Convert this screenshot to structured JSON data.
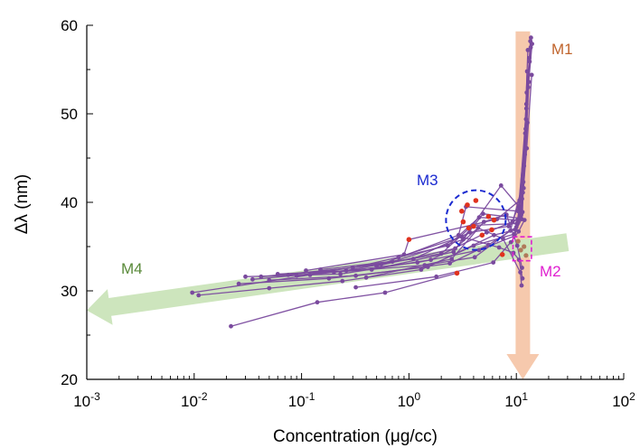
{
  "chart_data": {
    "type": "line",
    "xlabel": "Concentration (μg/cc)",
    "ylabel": "Δλ (nm)",
    "xscale": "log",
    "xlim": [
      0.001,
      100
    ],
    "ylim": [
      20,
      60
    ],
    "xticks": [
      {
        "value": 0.001,
        "base": "10",
        "exp": "-3"
      },
      {
        "value": 0.01,
        "base": "10",
        "exp": "-2"
      },
      {
        "value": 0.1,
        "base": "10",
        "exp": "-1"
      },
      {
        "value": 1,
        "base": "10",
        "exp": "0"
      },
      {
        "value": 10,
        "base": "10",
        "exp": "1"
      },
      {
        "value": 100,
        "base": "10",
        "exp": "2"
      }
    ],
    "yticks": [
      20,
      30,
      40,
      50,
      60
    ],
    "grid": false,
    "line_color": "#7a4a9e",
    "highlight_color": "#e0321e",
    "annotations": [
      {
        "id": "M1",
        "label": "M1",
        "color": "#c0642c"
      },
      {
        "id": "M2",
        "label": "M2",
        "color": "#e020d0"
      },
      {
        "id": "M3",
        "label": "M3",
        "color": "#1a2ad0"
      },
      {
        "id": "M4",
        "label": "M4",
        "color": "#5a8a3a"
      }
    ],
    "arrows": [
      {
        "id": "M1",
        "kind": "vertical-down",
        "x": 11.5,
        "y_from": 59,
        "y_to": 20,
        "color": "#f6c9ad"
      },
      {
        "id": "M4",
        "kind": "leftward",
        "x_from": 30,
        "x_to": 0.001,
        "y_from": 35.5,
        "y_to": 27.8,
        "color": "#cde5bd"
      }
    ],
    "regions": [
      {
        "id": "M3",
        "shape": "circle",
        "center": [
          4.2,
          38
        ],
        "color": "#1a2ad0"
      },
      {
        "id": "M2",
        "shape": "rect",
        "x": [
          9.3,
          13.8
        ],
        "y": [
          33.4,
          36.1
        ],
        "color": "#e020d0"
      }
    ],
    "series": [
      {
        "points": [
          [
            0.022,
            26
          ],
          [
            0.14,
            28.7
          ],
          [
            0.6,
            29.8
          ],
          [
            2.8,
            32
          ]
        ]
      },
      {
        "points": [
          [
            0.0096,
            29.8
          ],
          [
            0.12,
            31.8
          ],
          [
            1.2,
            33.2
          ],
          [
            4.5,
            34.6
          ],
          [
            9.6,
            36.2
          ],
          [
            11,
            38.4
          ],
          [
            12.5,
            52.4
          ],
          [
            13.7,
            58.6
          ]
        ]
      },
      {
        "points": [
          [
            0.011,
            29.5
          ],
          [
            0.05,
            30.3
          ],
          [
            0.24,
            31.1
          ],
          [
            1.3,
            32.4
          ],
          [
            4,
            35.1
          ],
          [
            9.5,
            36.4
          ],
          [
            11.2,
            38.1
          ],
          [
            12.3,
            49.4
          ],
          [
            13.5,
            58.2
          ]
        ]
      },
      {
        "points": [
          [
            0.026,
            30.8
          ],
          [
            0.18,
            31.4
          ],
          [
            1.5,
            32.7
          ],
          [
            6.2,
            36.3
          ],
          [
            9.8,
            36.9
          ],
          [
            11.4,
            38.9
          ],
          [
            12.6,
            54.8
          ]
        ]
      },
      {
        "points": [
          [
            0.03,
            31.6
          ],
          [
            0.23,
            31.9
          ],
          [
            1.6,
            33.5
          ],
          [
            5.3,
            36.6
          ],
          [
            9.2,
            37.8
          ],
          [
            11.5,
            41.1
          ],
          [
            12.8,
            57.2
          ]
        ]
      },
      {
        "points": [
          [
            0.035,
            31.3
          ],
          [
            0.26,
            32.3
          ],
          [
            2,
            34.2
          ],
          [
            3.9,
            37.4
          ],
          [
            10.1,
            37.6
          ],
          [
            11.7,
            41.6
          ],
          [
            13.1,
            53.6
          ]
        ]
      },
      {
        "points": [
          [
            0.042,
            31.6
          ],
          [
            0.3,
            32.6
          ],
          [
            2.3,
            35.1
          ],
          [
            4.5,
            38.3
          ],
          [
            10.3,
            38
          ],
          [
            12,
            45.4
          ],
          [
            13.3,
            55.9
          ]
        ]
      },
      {
        "points": [
          [
            0.05,
            31.2
          ],
          [
            0.32,
            31.7
          ],
          [
            2.4,
            33.1
          ],
          [
            5.5,
            35.2
          ],
          [
            10,
            37.2
          ],
          [
            11.3,
            40.4
          ],
          [
            12.4,
            51.1
          ]
        ]
      },
      {
        "points": [
          [
            0.06,
            31.9
          ],
          [
            0.45,
            32.4
          ],
          [
            2.6,
            34.4
          ],
          [
            7.2,
            41.9
          ],
          [
            10.6,
            39.5
          ],
          [
            11.8,
            44.1
          ],
          [
            12.9,
            53
          ]
        ]
      },
      {
        "points": [
          [
            0.075,
            31.8
          ],
          [
            0.55,
            33
          ],
          [
            2.9,
            36.3
          ],
          [
            3.4,
            39.5
          ],
          [
            10.4,
            39
          ],
          [
            12.1,
            47.8
          ],
          [
            13.2,
            56.3
          ]
        ]
      },
      {
        "points": [
          [
            0.09,
            31.7
          ],
          [
            0.7,
            33.3
          ],
          [
            3.2,
            35.8
          ],
          [
            4.9,
            38.7
          ],
          [
            10.8,
            38.2
          ],
          [
            12.2,
            48.3
          ],
          [
            13.6,
            57.5
          ]
        ]
      },
      {
        "points": [
          [
            0.11,
            32.3
          ],
          [
            0.9,
            34.1
          ],
          [
            1,
            35.8
          ],
          [
            6.6,
            38.1
          ],
          [
            10.7,
            40.2
          ],
          [
            12.4,
            50.6
          ],
          [
            14,
            57.9
          ]
        ]
      },
      {
        "points": [
          [
            0.15,
            32.4
          ],
          [
            1.1,
            33.6
          ],
          [
            3.7,
            36.6
          ],
          [
            8.5,
            37.3
          ],
          [
            11.1,
            38.6
          ],
          [
            12.5,
            46.1
          ],
          [
            13.9,
            54.4
          ]
        ]
      },
      {
        "points": [
          [
            0.2,
            32.1
          ],
          [
            1.4,
            32.9
          ],
          [
            4.1,
            33.8
          ],
          [
            8.8,
            36.8
          ],
          [
            11.6,
            42.3
          ],
          [
            12.7,
            49
          ]
        ]
      },
      {
        "points": [
          [
            0.32,
            30.4
          ],
          [
            1.8,
            31.6
          ],
          [
            6.1,
            33.2
          ],
          [
            8.9,
            35.5
          ],
          [
            10.5,
            36.7
          ],
          [
            11.9,
            38
          ]
        ]
      },
      {
        "points": [
          [
            0.4,
            31.5
          ],
          [
            2.5,
            33.6
          ],
          [
            5,
            37.8
          ],
          [
            8.1,
            38.6
          ],
          [
            10.2,
            35.1
          ],
          [
            11.3,
            32.6
          ]
        ]
      },
      {
        "points": [
          [
            0.5,
            32.8
          ],
          [
            2.7,
            34.8
          ],
          [
            4.4,
            37.1
          ],
          [
            7.5,
            35.9
          ],
          [
            10.9,
            32.1
          ],
          [
            11.2,
            30.6
          ]
        ]
      },
      {
        "points": [
          [
            0.8,
            33.8
          ],
          [
            3.1,
            36.1
          ],
          [
            6.9,
            34.9
          ],
          [
            9.4,
            34.3
          ],
          [
            10.6,
            33.5
          ],
          [
            11.4,
            31.4
          ]
        ]
      }
    ],
    "highlight_points": [
      [
        1,
        35.8
      ],
      [
        2.8,
        32
      ],
      [
        3.1,
        39
      ],
      [
        3.5,
        39.7
      ],
      [
        4.2,
        40.2
      ],
      [
        5.5,
        38.4
      ],
      [
        6.2,
        38
      ],
      [
        3.6,
        37.1
      ],
      [
        4.8,
        36.3
      ],
      [
        3.2,
        37.8
      ],
      [
        5.9,
        36.9
      ],
      [
        7.4,
        34.1
      ],
      [
        4,
        37.3
      ]
    ],
    "m2_dots": [
      [
        10.4,
        35.6
      ],
      [
        11,
        34.6
      ],
      [
        11.8,
        35
      ],
      [
        12.3,
        34
      ]
    ]
  }
}
